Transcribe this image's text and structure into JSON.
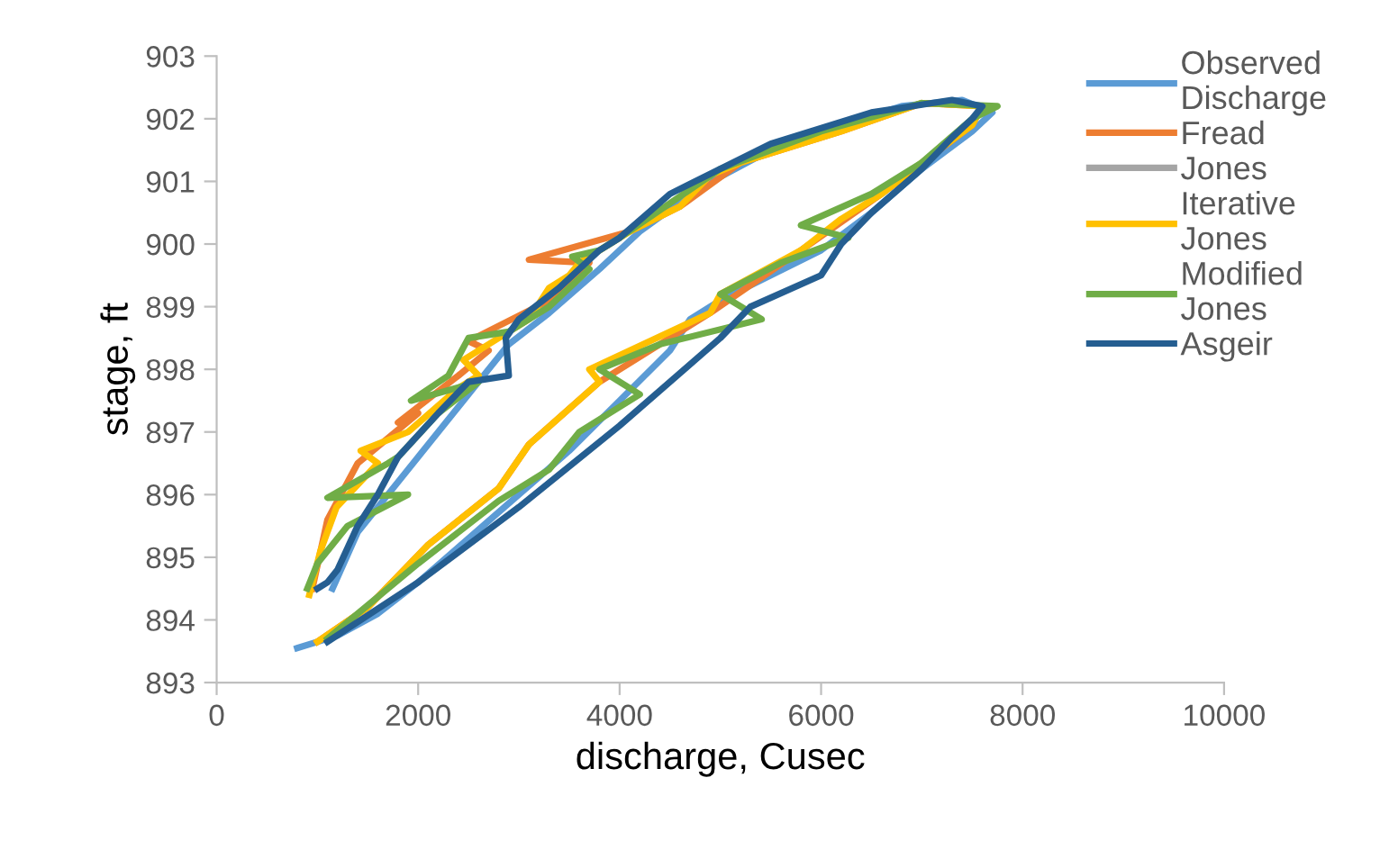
{
  "chart_data": {
    "type": "line",
    "xlabel": "discharge, Cusec",
    "ylabel": "stage, ft",
    "xlim": [
      0,
      10000
    ],
    "xticks": [
      0,
      2000,
      4000,
      6000,
      8000,
      10000
    ],
    "ylim": [
      893,
      903
    ],
    "yticks": [
      893,
      894,
      895,
      896,
      897,
      898,
      899,
      900,
      901,
      902,
      903
    ],
    "grid": false,
    "legend": "top right",
    "marker": "none",
    "line_style": "solid",
    "series": [
      {
        "name": "Observed Discharge",
        "color": "#5b9bd5",
        "x": [
          800,
          1200,
          1600,
          2000,
          2500,
          3000,
          3500,
          4000,
          4500,
          4700,
          5000,
          5500,
          6000,
          6500,
          7000,
          7500,
          7700,
          7400,
          6800,
          6200,
          5500,
          4800,
          4200,
          3800,
          3300,
          2900,
          2600,
          2300,
          2000,
          1700,
          1400,
          1150
        ],
        "values": [
          893.55,
          893.75,
          894.1,
          894.6,
          895.3,
          896.0,
          896.7,
          897.5,
          898.3,
          898.8,
          899.1,
          899.5,
          899.9,
          900.5,
          901.2,
          901.8,
          902.1,
          902.3,
          902.2,
          901.9,
          901.5,
          900.9,
          900.2,
          899.6,
          898.9,
          898.4,
          897.8,
          897.2,
          896.6,
          896.0,
          895.4,
          894.5
        ]
      },
      {
        "name": "Fread",
        "color": "#ed7d31",
        "x": [
          1000,
          1500,
          2100,
          2800,
          3100,
          3800,
          4900,
          5800,
          6600,
          7500,
          7600,
          7000,
          6200,
          5200,
          4600,
          4100,
          3100,
          3700,
          3300,
          2500,
          2700,
          2400,
          1800,
          2000,
          1400,
          1100,
          950
        ],
        "values": [
          893.65,
          894.2,
          895.2,
          896.1,
          896.8,
          897.8,
          898.9,
          899.9,
          900.8,
          901.9,
          902.2,
          902.25,
          901.8,
          901.3,
          900.6,
          900.2,
          899.75,
          899.7,
          899.1,
          898.45,
          898.3,
          897.9,
          897.15,
          897.3,
          896.5,
          895.6,
          894.5
        ]
      },
      {
        "name": "Jones",
        "color": "#a5a5a5"
      },
      {
        "name": "Iterative Jones",
        "color": "#ffc000",
        "x": [
          1000,
          1500,
          2100,
          2800,
          3100,
          3800,
          3700,
          4900,
          5000,
          5800,
          6200,
          6600,
          7000,
          7500,
          7600,
          7000,
          6200,
          5200,
          4900,
          4600,
          4100,
          3600,
          3500,
          3300,
          3100,
          2450,
          2600,
          2400,
          1900,
          1430,
          1600,
          1190,
          1030,
          920
        ],
        "values": [
          893.65,
          894.2,
          895.2,
          896.1,
          896.8,
          897.8,
          898.0,
          898.9,
          899.2,
          899.9,
          900.4,
          900.8,
          901.3,
          901.9,
          902.2,
          902.25,
          901.8,
          901.3,
          901.1,
          900.6,
          900.2,
          899.7,
          899.5,
          899.3,
          898.8,
          898.15,
          897.9,
          897.7,
          897.0,
          896.7,
          896.5,
          895.8,
          895.1,
          894.4
        ]
      },
      {
        "name": "Modified Jones",
        "color": "#70ad47",
        "x": [
          1100,
          2000,
          2800,
          3300,
          3600,
          4200,
          3800,
          4400,
          5410,
          5000,
          5600,
          6270,
          5800,
          6500,
          7000,
          7500,
          7750,
          7000,
          6000,
          5000,
          4000,
          3800,
          3530,
          3700,
          3300,
          2900,
          2500,
          2300,
          1930,
          2600,
          2200,
          1800,
          1700,
          1100,
          1900,
          1300,
          1000,
          900
        ],
        "values": [
          893.7,
          894.9,
          895.9,
          896.4,
          897.0,
          897.6,
          898.0,
          898.4,
          898.8,
          899.2,
          899.7,
          900.1,
          900.3,
          900.8,
          901.3,
          902.0,
          902.2,
          902.25,
          901.8,
          901.2,
          900.1,
          899.9,
          899.8,
          899.6,
          899.0,
          898.6,
          898.5,
          897.9,
          897.5,
          897.8,
          897.3,
          896.6,
          896.5,
          895.95,
          896.0,
          895.5,
          894.9,
          894.5
        ]
      },
      {
        "name": "Asgeir",
        "color": "#255e91",
        "x": [
          1100,
          2000,
          3000,
          4000,
          5000,
          5300,
          6000,
          6200,
          6500,
          7000,
          7300,
          7500,
          7600,
          7300,
          6500,
          5500,
          4500,
          4000,
          3800,
          3400,
          3000,
          2870,
          2900,
          2500,
          2200,
          1800,
          1600,
          1400,
          1200,
          1100,
          1000
        ],
        "values": [
          893.65,
          894.6,
          895.8,
          897.1,
          898.5,
          899.0,
          899.5,
          900.0,
          900.5,
          901.2,
          901.7,
          902.0,
          902.2,
          902.3,
          902.1,
          901.6,
          900.8,
          900.1,
          899.9,
          899.3,
          898.8,
          898.5,
          897.9,
          897.8,
          897.3,
          896.6,
          896.0,
          895.5,
          894.8,
          894.6,
          894.5
        ]
      }
    ]
  }
}
